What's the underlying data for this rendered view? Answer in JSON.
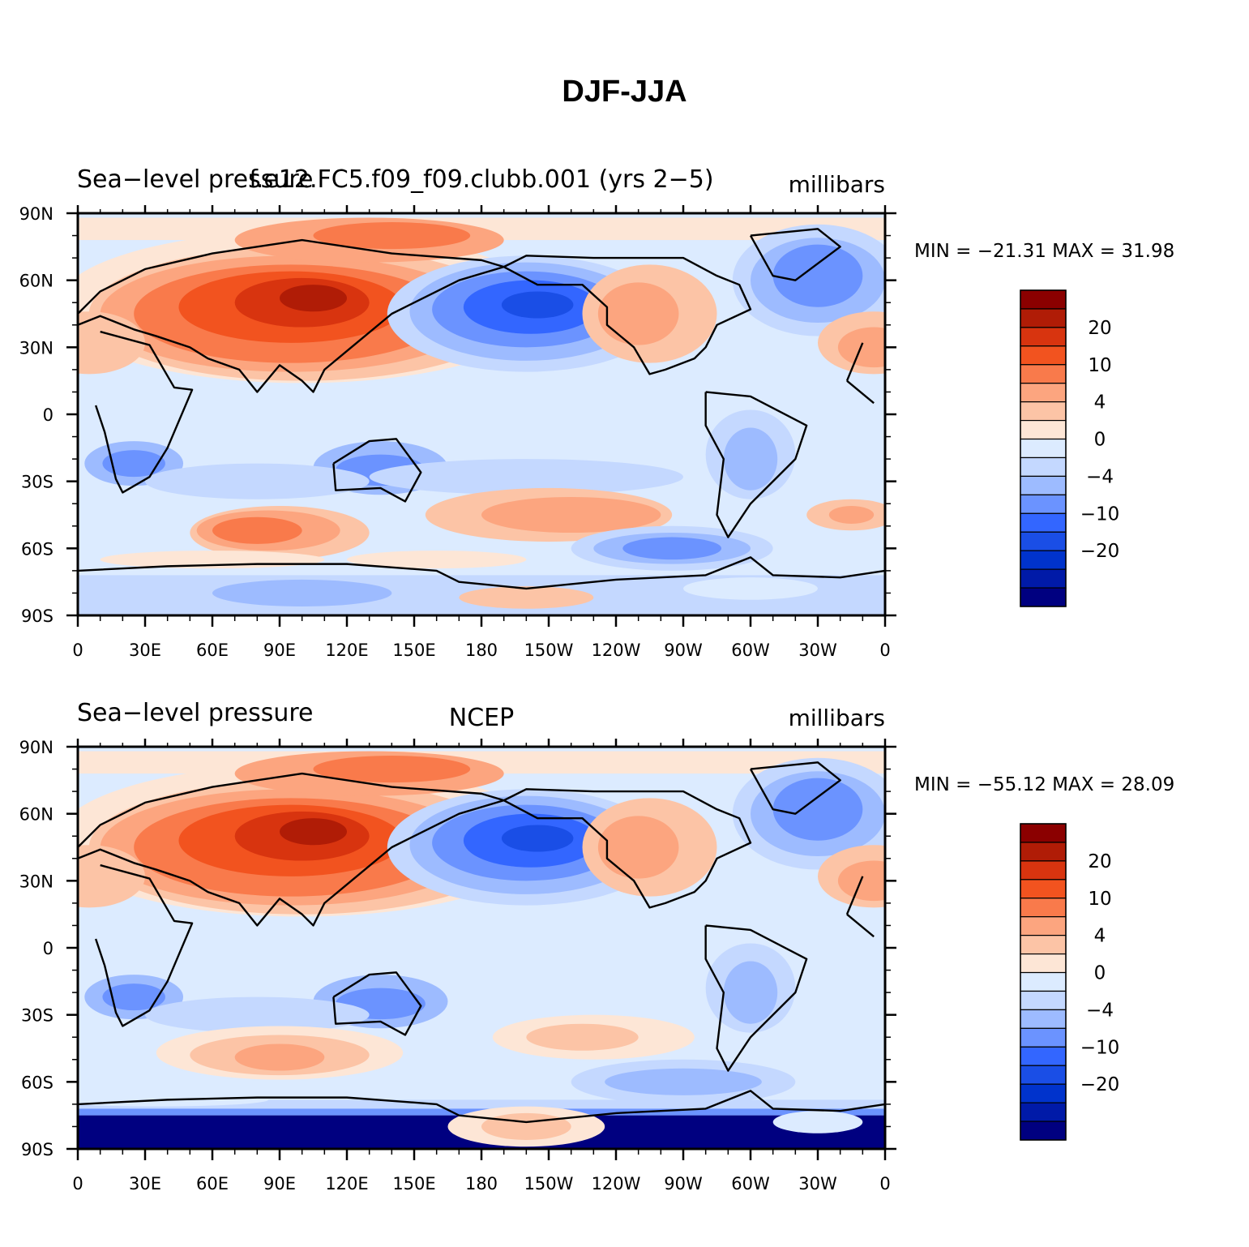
{
  "figure": {
    "title": "DJF-JJA"
  },
  "color_scale": [
    "#000080",
    "#001aa8",
    "#0033cc",
    "#1a4ee6",
    "#3366ff",
    "#6b93ff",
    "#9dbbff",
    "#c4d8ff",
    "#dcebff",
    "#fde6d6",
    "#fcc4a6",
    "#fca57f",
    "#f97a4b",
    "#f2531f",
    "#d8340f",
    "#b01c06",
    "#8b0000"
  ],
  "colorbar_labels": [
    "20",
    "10",
    "4",
    "0",
    "−4",
    "−10",
    "−20"
  ],
  "x_ticks": [
    "0",
    "30E",
    "60E",
    "90E",
    "120E",
    "150E",
    "180",
    "150W",
    "120W",
    "90W",
    "60W",
    "30W",
    "0"
  ],
  "y_ticks": [
    "90N",
    "60N",
    "30N",
    "0",
    "30S",
    "60S",
    "90S"
  ],
  "panels": [
    {
      "left_label": "Sea−level pressure",
      "center_label": "f.e12.FC5.f09_f09.clubb.001 (yrs 2−5)",
      "right_label": "millibars",
      "min_max": "MIN = −21.31  MAX =   31.98"
    },
    {
      "left_label": "Sea−level pressure",
      "center_label": "NCEP",
      "right_label": "millibars",
      "min_max": "MIN = −55.12  MAX =   28.09"
    }
  ]
}
